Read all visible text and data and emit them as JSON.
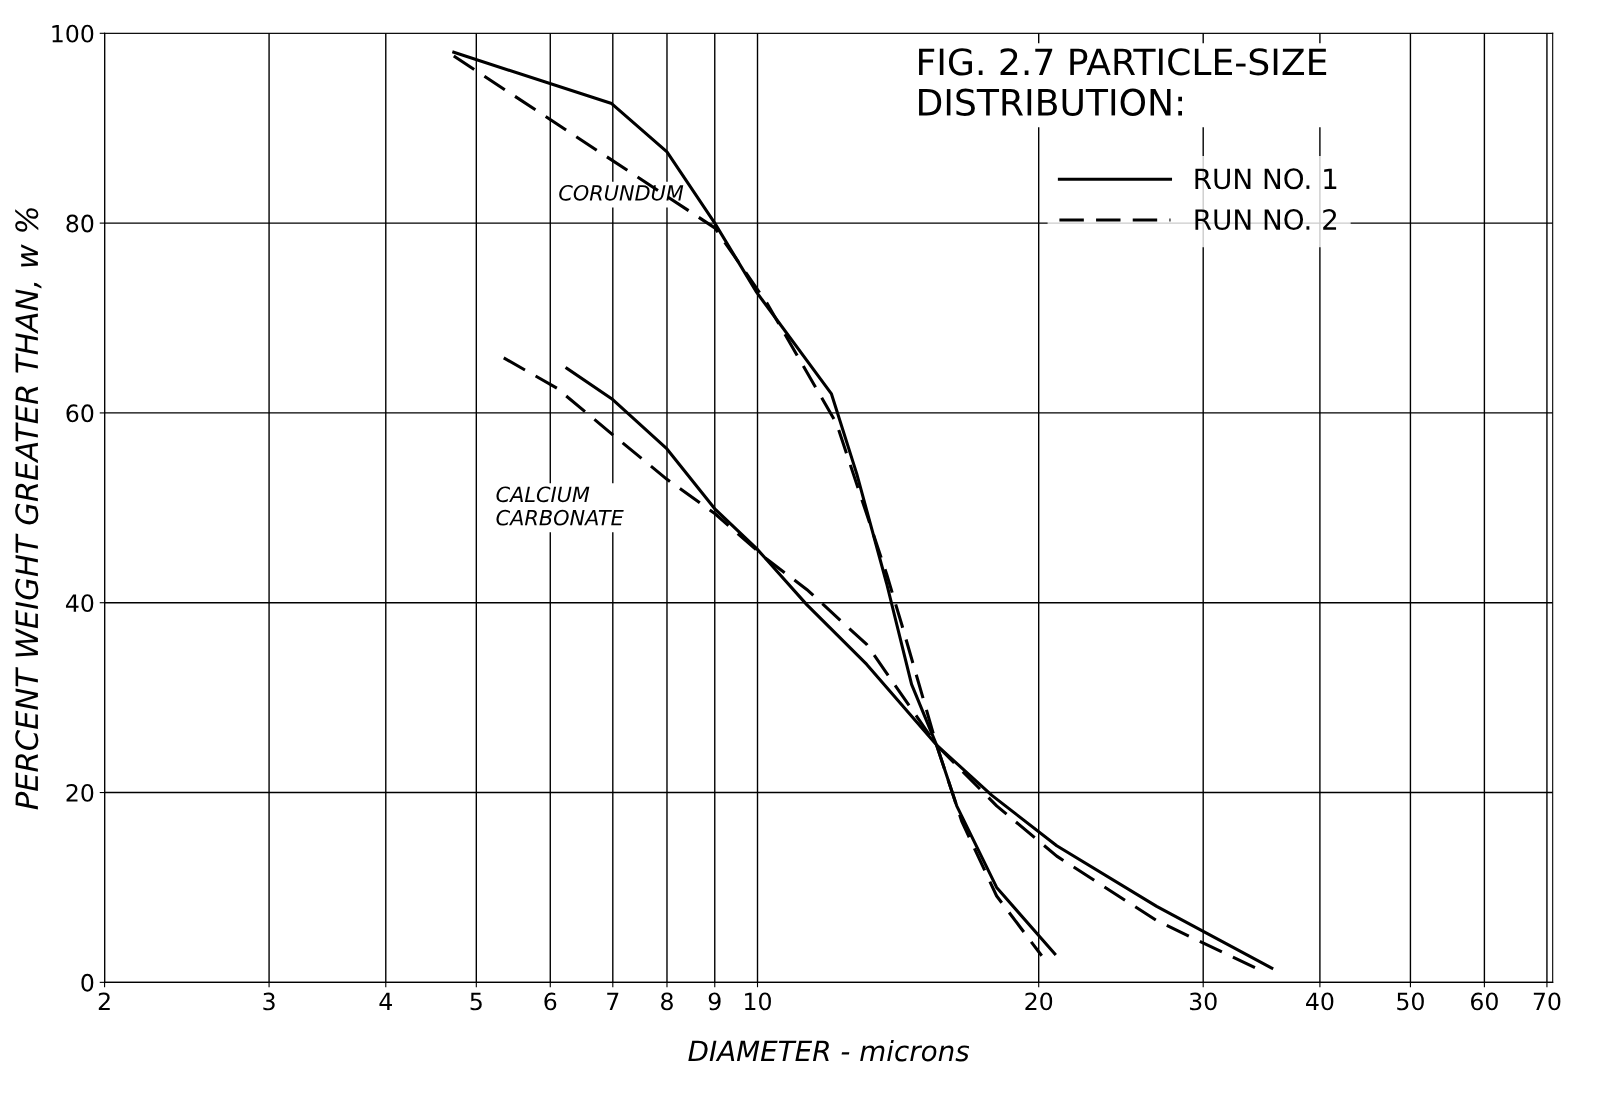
{
  "chart_data": {
    "type": "line",
    "title": "FIG. 2.7 PARTICLE-SIZE DISTRIBUTION:",
    "xlabel": "DIAMETER - microns",
    "ylabel": "PERCENT WEIGHT GREATER THAN, w %",
    "log": "x",
    "xlim": [
      2,
      71
    ],
    "ylim": [
      0,
      100
    ],
    "xticks": [
      2,
      3,
      4,
      5,
      6,
      7,
      8,
      9,
      10,
      20,
      30,
      40,
      50,
      60,
      70
    ],
    "yticks": [
      0,
      20,
      40,
      60,
      80,
      100
    ],
    "grid": true,
    "legend": "top right",
    "marker": "none",
    "annotations": [
      "CORUNDUM",
      "CALCIUM\nCARBONATE"
    ],
    "series": [
      {
        "name": "RUN NO. 1",
        "color": "#000000",
        "line_style": "solid",
        "x": [
          4.73,
          6.98,
          8.0,
          9.0,
          9.98,
          12.0,
          12.77,
          13.75,
          14.62,
          15.55,
          16.34,
          18.03,
          20.81
        ],
        "values": [
          98,
          92.6,
          87.5,
          80,
          72.7,
          62,
          53.6,
          42,
          31.4,
          25,
          18.6,
          10,
          3
        ]
      },
      {
        "name": "RUN NO. 2",
        "color": "#000000",
        "line_style": "dashed",
        "x": [
          4.73,
          9.0,
          10.23,
          12.15,
          13.75,
          14.27,
          15.55,
          16.54,
          18.03,
          20.15
        ],
        "values": [
          97.6,
          79.5,
          71.6,
          58.9,
          43,
          37.7,
          25,
          17,
          9.1,
          2.8
        ]
      },
      {
        "color": "#000000",
        "line_style": "solid",
        "x": [
          6.25,
          6.98,
          8.0,
          9.0,
          9.98,
          11.29,
          13.09,
          15.55,
          17.82,
          20.91,
          26.75,
          35.53
        ],
        "values": [
          64.7,
          61.5,
          56.2,
          49.9,
          45.7,
          39.8,
          33.5,
          25,
          19.7,
          14.4,
          8,
          1.5
        ]
      },
      {
        "color": "#000000",
        "line_style": "dashed",
        "x": [
          5.35,
          6.1,
          6.98,
          8.0,
          9.0,
          10.23,
          11.29,
          13.09,
          15.55,
          18.03,
          20.91,
          26.75,
          34.66
        ],
        "values": [
          65.8,
          62.6,
          57.8,
          53,
          49.4,
          44.6,
          41.4,
          35.6,
          25,
          18.6,
          13.3,
          6.5,
          1.2
        ]
      }
    ]
  }
}
